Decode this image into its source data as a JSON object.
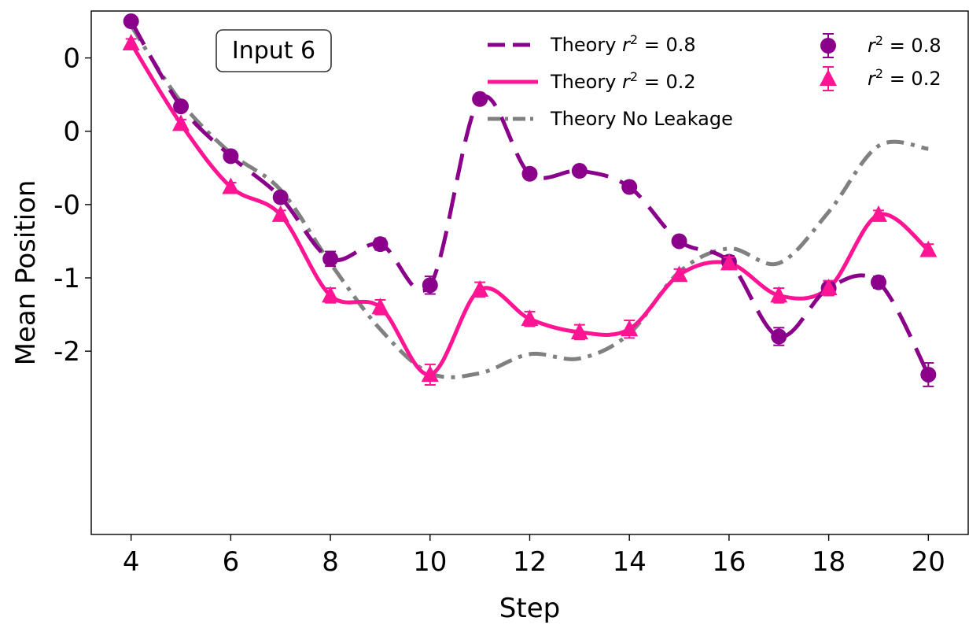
{
  "chart_data": {
    "type": "line",
    "title": "",
    "annotation": "Input 6",
    "xlabel": "Step",
    "ylabel": "Mean Position",
    "xlim": [
      3.2,
      20.8
    ],
    "ylim": [
      -2.75,
      0.82
    ],
    "x_ticks": [
      {
        "value": 4,
        "label": "4"
      },
      {
        "value": 6,
        "label": "6"
      },
      {
        "value": 8,
        "label": "8"
      },
      {
        "value": 10,
        "label": "10"
      },
      {
        "value": 12,
        "label": "12"
      },
      {
        "value": 14,
        "label": "14"
      },
      {
        "value": 16,
        "label": "16"
      },
      {
        "value": 18,
        "label": "18"
      },
      {
        "value": 20,
        "label": "20"
      }
    ],
    "y_ticks": [
      {
        "value": 0.5,
        "label": "0"
      },
      {
        "value": 0.0,
        "label": "0"
      },
      {
        "value": -0.5,
        "label": "-0"
      },
      {
        "value": -1.0,
        "label": "-1"
      },
      {
        "value": -1.5,
        "label": "-2"
      }
    ],
    "x": [
      4,
      5,
      6,
      7,
      8,
      9,
      10,
      11,
      12,
      13,
      14,
      15,
      16,
      17,
      18,
      19,
      20
    ],
    "series": [
      {
        "name": "Theory r² = 0.8",
        "kind": "theory",
        "color": "#8B008B",
        "dash": "dashed",
        "values": [
          0.75,
          0.17,
          -0.17,
          -0.45,
          -0.87,
          -0.77,
          -1.05,
          0.22,
          -0.29,
          -0.27,
          -0.38,
          -0.75,
          -0.89,
          -1.4,
          -1.07,
          -1.03,
          -1.66
        ]
      },
      {
        "name": "Theory r² = 0.2",
        "kind": "theory",
        "color": "#FF1493",
        "dash": "solid",
        "values": [
          0.6,
          0.05,
          -0.38,
          -0.57,
          -1.12,
          -1.2,
          -1.66,
          -1.08,
          -1.28,
          -1.37,
          -1.35,
          -0.98,
          -0.9,
          -1.12,
          -1.07,
          -0.57,
          -0.81
        ]
      },
      {
        "name": "Theory No Leakage",
        "kind": "theory",
        "color": "#808080",
        "dash": "dashdot",
        "x": [
          4,
          5,
          6,
          7,
          8,
          9,
          10,
          11,
          12,
          13,
          14,
          15,
          16,
          17,
          18,
          19,
          20
        ],
        "values": [
          0.72,
          0.2,
          -0.15,
          -0.4,
          -0.9,
          -1.35,
          -1.65,
          -1.65,
          -1.52,
          -1.55,
          -1.38,
          -0.96,
          -0.8,
          -0.9,
          -0.55,
          -0.1,
          -0.12
        ]
      },
      {
        "name": "r² = 0.8",
        "kind": "points",
        "marker": "circle",
        "color": "#8B008B",
        "values": [
          0.75,
          0.17,
          -0.17,
          -0.45,
          -0.87,
          -0.77,
          -1.05,
          0.22,
          -0.29,
          -0.27,
          -0.38,
          -0.75,
          -0.89,
          -1.4,
          -1.07,
          -1.03,
          -1.66
        ],
        "errors": [
          0.03,
          0.03,
          0.03,
          0.03,
          0.05,
          0.04,
          0.06,
          0.03,
          0.03,
          0.03,
          0.03,
          0.03,
          0.04,
          0.06,
          0.05,
          0.04,
          0.08
        ]
      },
      {
        "name": "r² = 0.2",
        "kind": "points",
        "marker": "triangle",
        "color": "#FF1493",
        "values": [
          0.6,
          0.05,
          -0.38,
          -0.57,
          -1.12,
          -1.2,
          -1.66,
          -1.08,
          -1.28,
          -1.37,
          -1.35,
          -0.98,
          -0.9,
          -1.12,
          -1.07,
          -0.57,
          -0.81
        ],
        "errors": [
          0.03,
          0.03,
          0.03,
          0.03,
          0.05,
          0.05,
          0.07,
          0.05,
          0.05,
          0.05,
          0.06,
          0.04,
          0.04,
          0.05,
          0.05,
          0.03,
          0.04
        ]
      }
    ],
    "legend": {
      "placement": "top-right",
      "columns": [
        [
          "Theory r² = 0.8",
          "Theory r² = 0.2",
          "Theory No Leakage"
        ],
        [
          "r² = 0.8",
          "r² = 0.2"
        ]
      ]
    },
    "legend_labels": {
      "theory_08_prefix": "Theory ",
      "theory_02_prefix": "Theory ",
      "no_leakage": "Theory No Leakage",
      "r_symbol": "r",
      "sup": "2",
      "eq_08": " = 0.8",
      "eq_02": " = 0.2"
    }
  }
}
